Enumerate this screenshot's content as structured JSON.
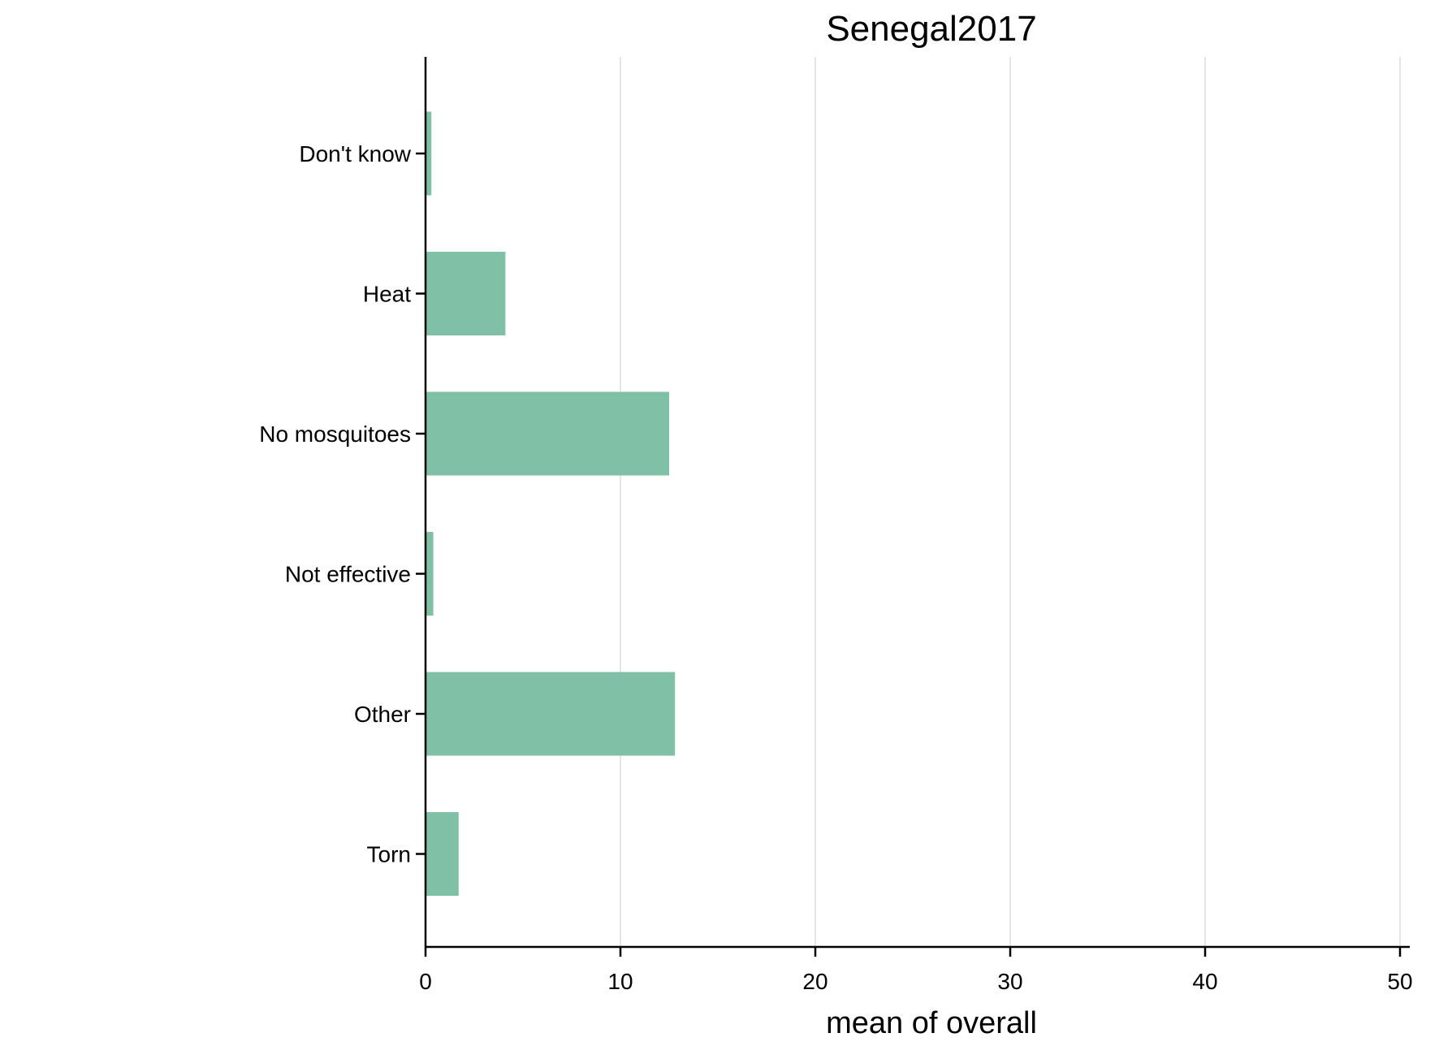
{
  "chart_data": {
    "type": "bar",
    "orientation": "horizontal",
    "title": "Senegal2017",
    "xlabel": "mean of overall",
    "ylabel": "",
    "categories": [
      "Don't know",
      "Heat",
      "No mosquitoes",
      "Not effective",
      "Other",
      "Torn"
    ],
    "values": [
      0.3,
      4.1,
      12.5,
      0.4,
      12.8,
      1.7
    ],
    "xlim": [
      0,
      51
    ],
    "xticks": [
      0,
      10,
      20,
      30,
      40,
      50
    ],
    "xtick_labels": [
      "0",
      "10",
      "20",
      "30",
      "40",
      "50"
    ],
    "grid": true,
    "bar_color": "#80c0a6",
    "grid_color": "#e6e6e6",
    "axis_color": "#000000"
  }
}
